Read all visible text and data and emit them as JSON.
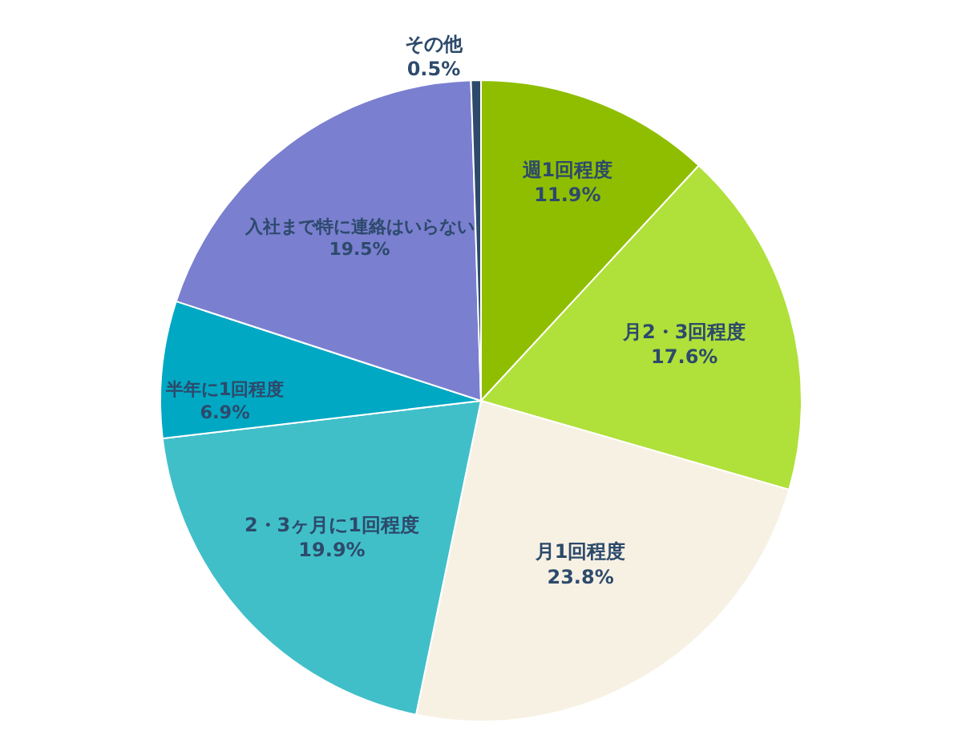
{
  "chart_data": {
    "type": "pie",
    "categories": [
      "週1回程度",
      "月2・3回程度",
      "月1回程度",
      "2・3ヶ月に1回程度",
      "半年に1回程度",
      "入社まで特に連絡はいらない",
      "その他"
    ],
    "values": [
      11.9,
      17.6,
      23.8,
      19.9,
      6.9,
      19.5,
      0.5
    ],
    "value_labels": [
      "11.9%",
      "17.6%",
      "23.8%",
      "19.9%",
      "6.9%",
      "19.5%",
      "0.5%"
    ],
    "colors": [
      "#8fbe00",
      "#b0e03a",
      "#f7f1e4",
      "#40bfc9",
      "#00a8c4",
      "#7a7fd0",
      "#2d4a6b"
    ],
    "legend": false
  }
}
